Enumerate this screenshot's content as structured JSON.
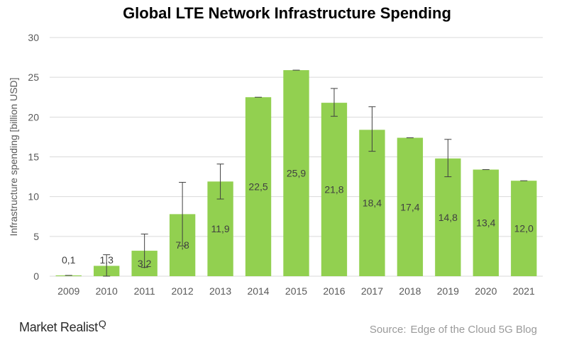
{
  "title": "Global LTE Network Infrastructure Spending",
  "brand": "Market Realist",
  "brand_mark": "Q",
  "source_label": "Source:",
  "source_text": "Edge of the Cloud 5G Blog",
  "colors": {
    "bar": "#92d050",
    "grid": "#d9d9d9",
    "axis_text": "#595959",
    "label_text": "#404040",
    "error": "#404040"
  },
  "chart_data": {
    "type": "bar",
    "title": "Global LTE Network Infrastructure Spending",
    "xlabel": "",
    "ylabel": "Infrastructure spending [billion USD]",
    "ylim": [
      0,
      30
    ],
    "yticks": [
      0,
      5,
      10,
      15,
      20,
      25,
      30
    ],
    "grid": true,
    "categories": [
      "2009",
      "2010",
      "2011",
      "2012",
      "2013",
      "2014",
      "2015",
      "2016",
      "2017",
      "2018",
      "2019",
      "2020",
      "2021"
    ],
    "values": [
      0.1,
      1.3,
      3.2,
      7.8,
      11.9,
      22.5,
      25.9,
      21.8,
      18.4,
      17.4,
      14.8,
      13.4,
      12.0
    ],
    "value_labels": [
      "0,1",
      "1,3",
      "3,2",
      "7,8",
      "11,9",
      "22,5",
      "25,9",
      "21,8",
      "18,4",
      "17,4",
      "14,8",
      "13,4",
      "12,0"
    ],
    "error_low": [
      0.1,
      0.0,
      1.1,
      3.8,
      9.7,
      22.5,
      25.9,
      20.1,
      15.7,
      17.4,
      12.5,
      13.4,
      12.0
    ],
    "error_high": [
      0.1,
      2.7,
      5.3,
      11.8,
      14.1,
      22.5,
      25.9,
      23.6,
      21.3,
      17.4,
      17.2,
      13.4,
      12.0
    ]
  }
}
